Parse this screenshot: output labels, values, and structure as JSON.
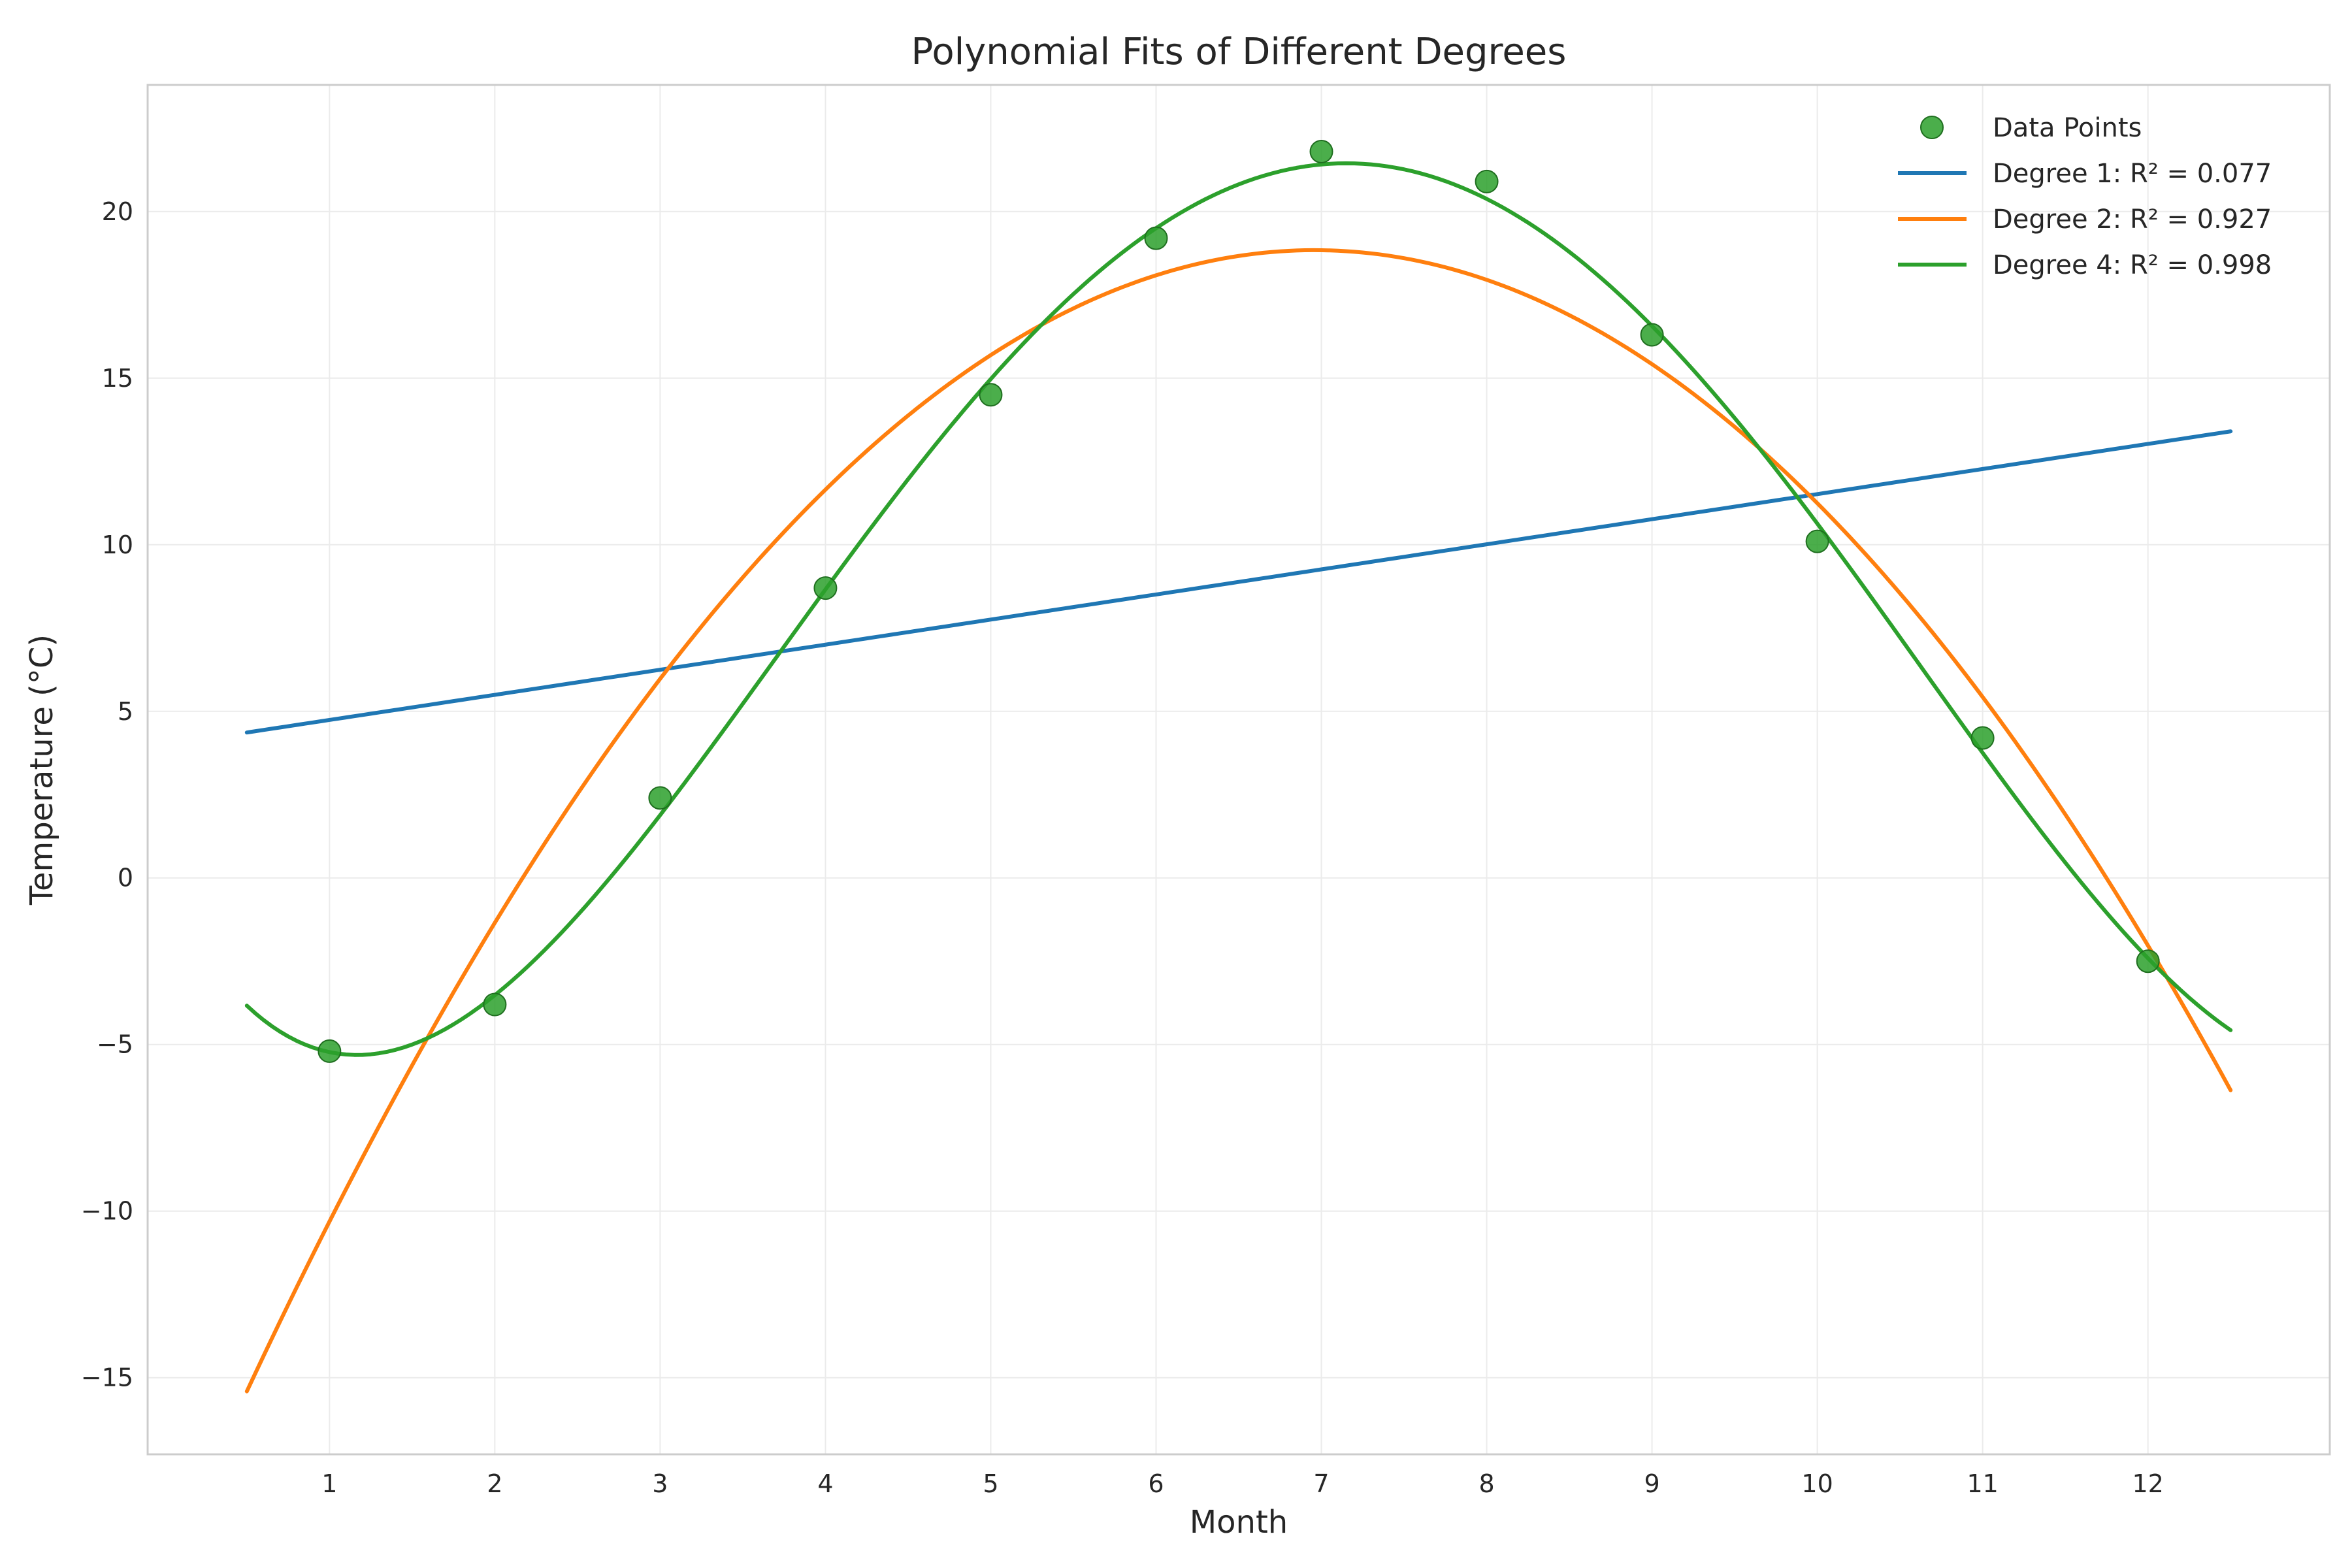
{
  "chart_data": {
    "type": "scatter",
    "title": "Polynomial Fits of Different Degrees",
    "xlabel": "Month",
    "ylabel": "Temperature (°C)",
    "xlim": [
      -0.1,
      13.1
    ],
    "ylim": [
      -17.3,
      23.8
    ],
    "x_ticks": [
      1,
      2,
      3,
      4,
      5,
      6,
      7,
      8,
      9,
      10,
      11,
      12
    ],
    "y_ticks": [
      -15,
      -10,
      -5,
      0,
      5,
      10,
      15,
      20
    ],
    "y_tick_labels": [
      "−15",
      "−10",
      "−5",
      "0",
      "5",
      "10",
      "15",
      "20"
    ],
    "grid": true,
    "legend_position": "top-right",
    "fit_x_range": [
      0.5,
      12.5
    ],
    "points": {
      "name": "Data Points",
      "color": "#2ca02c",
      "x": [
        1,
        2,
        3,
        4,
        5,
        6,
        7,
        8,
        9,
        10,
        11,
        12
      ],
      "y": [
        -5.2,
        -3.8,
        2.4,
        8.7,
        14.5,
        19.2,
        21.8,
        20.9,
        16.3,
        10.1,
        4.2,
        -2.5
      ]
    },
    "series": [
      {
        "name": "Degree 1: R² = 0.077",
        "color": "#1f77b4",
        "degree": 1
      },
      {
        "name": "Degree 2: R² = 0.927",
        "color": "#ff7f0e",
        "degree": 2
      },
      {
        "name": "Degree 4: R² = 0.998",
        "color": "#2ca02c",
        "degree": 4
      }
    ]
  }
}
